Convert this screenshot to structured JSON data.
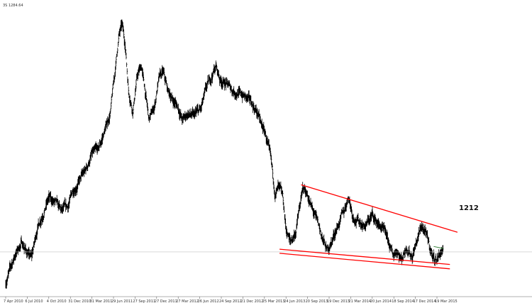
{
  "header": {
    "symbol_text": "3S 1284.64"
  },
  "chart_data": {
    "type": "line",
    "series_style": "bar",
    "title": "",
    "xlabel": "",
    "ylabel": "",
    "x_tick_labels": [
      "7 Apr 2010",
      "6 Jul 2010",
      "4 Oct 2010",
      "31 Dec 2010",
      "31 Mar 2011",
      "29 Jun 2011",
      "27 Sep 2011",
      "27 Dec 2011",
      "27 Mar 2012",
      "26 Jun 2012",
      "24 Sep 2012",
      "21 Dec 2012",
      "25 Mar 2013",
      "24 Jun 2013",
      "20 Sep 2013",
      "19 Dec 2013",
      "21 Mar 2014",
      "20 Jun 2014",
      "18 Sep 2014",
      "17 Dec 2014",
      "19 Mar 2015"
    ],
    "y_range": [
      1080,
      1930
    ],
    "horizontal_level": 1212,
    "price_anchors": [
      {
        "t": 0,
        "p": 1120
      },
      {
        "t": 0.2,
        "p": 1160
      },
      {
        "t": 0.45,
        "p": 1205
      },
      {
        "t": 0.75,
        "p": 1240
      },
      {
        "t": 1.0,
        "p": 1210
      },
      {
        "t": 1.2,
        "p": 1195
      },
      {
        "t": 1.5,
        "p": 1290
      },
      {
        "t": 1.75,
        "p": 1330
      },
      {
        "t": 2.0,
        "p": 1370
      },
      {
        "t": 2.3,
        "p": 1355
      },
      {
        "t": 2.6,
        "p": 1330
      },
      {
        "t": 2.9,
        "p": 1345
      },
      {
        "t": 3.1,
        "p": 1390
      },
      {
        "t": 3.4,
        "p": 1420
      },
      {
        "t": 3.7,
        "p": 1450
      },
      {
        "t": 4.0,
        "p": 1500
      },
      {
        "t": 4.3,
        "p": 1510
      },
      {
        "t": 4.6,
        "p": 1570
      },
      {
        "t": 4.85,
        "p": 1620
      },
      {
        "t": 5.05,
        "p": 1730
      },
      {
        "t": 5.25,
        "p": 1850
      },
      {
        "t": 5.4,
        "p": 1880
      },
      {
        "t": 5.55,
        "p": 1820
      },
      {
        "t": 5.7,
        "p": 1690
      },
      {
        "t": 5.9,
        "p": 1630
      },
      {
        "t": 6.1,
        "p": 1730
      },
      {
        "t": 6.3,
        "p": 1760
      },
      {
        "t": 6.5,
        "p": 1670
      },
      {
        "t": 6.65,
        "p": 1600
      },
      {
        "t": 6.9,
        "p": 1640
      },
      {
        "t": 7.1,
        "p": 1720
      },
      {
        "t": 7.3,
        "p": 1740
      },
      {
        "t": 7.5,
        "p": 1690
      },
      {
        "t": 7.75,
        "p": 1660
      },
      {
        "t": 8.0,
        "p": 1640
      },
      {
        "t": 8.2,
        "p": 1600
      },
      {
        "t": 8.45,
        "p": 1620
      },
      {
        "t": 8.7,
        "p": 1610
      },
      {
        "t": 8.85,
        "p": 1620
      },
      {
        "t": 9.05,
        "p": 1630
      },
      {
        "t": 9.3,
        "p": 1690
      },
      {
        "t": 9.55,
        "p": 1730
      },
      {
        "t": 9.75,
        "p": 1760
      },
      {
        "t": 9.95,
        "p": 1720
      },
      {
        "t": 10.2,
        "p": 1710
      },
      {
        "t": 10.5,
        "p": 1690
      },
      {
        "t": 10.8,
        "p": 1680
      },
      {
        "t": 11.1,
        "p": 1670
      },
      {
        "t": 11.4,
        "p": 1650
      },
      {
        "t": 11.7,
        "p": 1620
      },
      {
        "t": 11.85,
        "p": 1585
      },
      {
        "t": 12.05,
        "p": 1560
      },
      {
        "t": 12.3,
        "p": 1480
      },
      {
        "t": 12.5,
        "p": 1380
      },
      {
        "t": 12.65,
        "p": 1400
      },
      {
        "t": 12.85,
        "p": 1370
      },
      {
        "t": 13.0,
        "p": 1280
      },
      {
        "t": 13.2,
        "p": 1240
      },
      {
        "t": 13.45,
        "p": 1270
      },
      {
        "t": 13.6,
        "p": 1330
      },
      {
        "t": 13.8,
        "p": 1400
      },
      {
        "t": 14.0,
        "p": 1380
      },
      {
        "t": 14.2,
        "p": 1340
      },
      {
        "t": 14.45,
        "p": 1300
      },
      {
        "t": 14.7,
        "p": 1250
      },
      {
        "t": 14.9,
        "p": 1215
      },
      {
        "t": 15.1,
        "p": 1240
      },
      {
        "t": 15.4,
        "p": 1290
      },
      {
        "t": 15.7,
        "p": 1330
      },
      {
        "t": 15.9,
        "p": 1380
      },
      {
        "t": 16.1,
        "p": 1320
      },
      {
        "t": 16.4,
        "p": 1300
      },
      {
        "t": 16.7,
        "p": 1290
      },
      {
        "t": 17.0,
        "p": 1320
      },
      {
        "t": 17.2,
        "p": 1300
      },
      {
        "t": 17.45,
        "p": 1280
      },
      {
        "t": 17.7,
        "p": 1250
      },
      {
        "t": 17.95,
        "p": 1200
      },
      {
        "t": 18.15,
        "p": 1220
      },
      {
        "t": 18.35,
        "p": 1190
      },
      {
        "t": 18.6,
        "p": 1230
      },
      {
        "t": 18.85,
        "p": 1200
      },
      {
        "t": 19.1,
        "p": 1250
      },
      {
        "t": 19.3,
        "p": 1290
      },
      {
        "t": 19.5,
        "p": 1260
      },
      {
        "t": 19.65,
        "p": 1230
      },
      {
        "t": 19.8,
        "p": 1200
      },
      {
        "t": 20.0,
        "p": 1190
      },
      {
        "t": 20.15,
        "p": 1210
      },
      {
        "t": 20.3,
        "p": 1220
      }
    ],
    "upper_trendline": [
      {
        "t": 13.7,
        "p": 1410
      },
      {
        "t": 20.95,
        "p": 1270
      }
    ],
    "lower_trendline_1": [
      {
        "t": 12.7,
        "p": 1220
      },
      {
        "t": 20.6,
        "p": 1175
      }
    ],
    "lower_trendline_2": [
      {
        "t": 12.7,
        "p": 1208
      },
      {
        "t": 20.6,
        "p": 1162
      }
    ],
    "short_green_line": [
      {
        "t": 19.85,
        "p": 1228
      },
      {
        "t": 20.3,
        "p": 1222
      }
    ],
    "colors": {
      "price": "#000000",
      "trendline": "#ff0000",
      "level_line": "#c0c0c0",
      "green_line": "#2e7d32",
      "axis": "#666666"
    },
    "grid": false
  }
}
